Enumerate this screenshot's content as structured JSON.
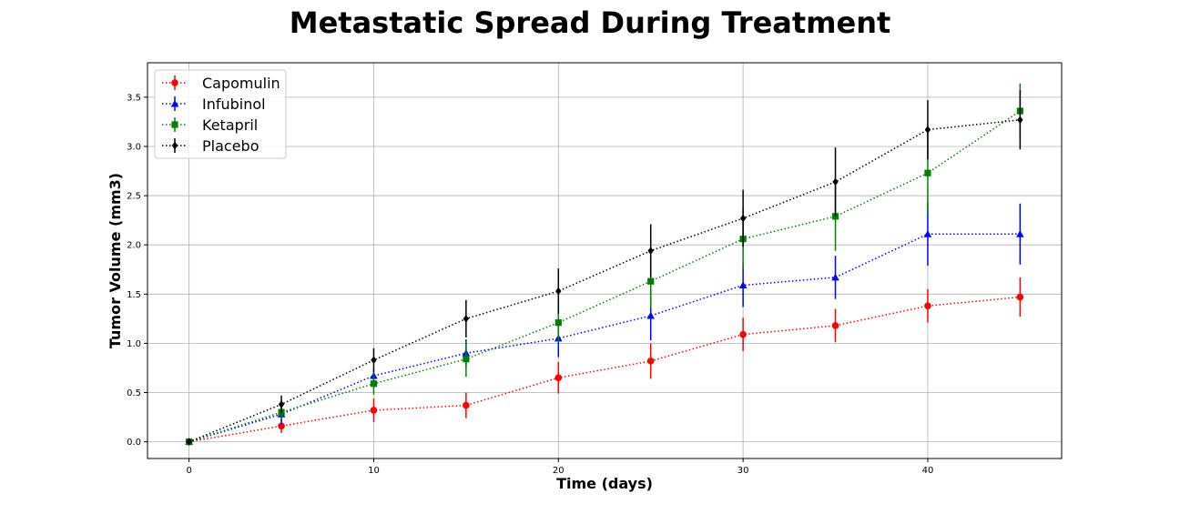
{
  "chart_data": {
    "type": "line",
    "title": "Metastatic Spread During Treatment",
    "xlabel": "Time (days)",
    "ylabel": "Tumor Volume (mm3)",
    "xlim": [
      -2.25,
      47.25
    ],
    "ylim": [
      -0.17,
      3.85
    ],
    "xticks": [
      0,
      10,
      20,
      30,
      40
    ],
    "xtick_labels": [
      "0",
      "10",
      "20",
      "30",
      "40"
    ],
    "yticks": [
      0.0,
      0.5,
      1.0,
      1.5,
      2.0,
      2.5,
      3.0,
      3.5
    ],
    "ytick_labels": [
      "0.0",
      "0.5",
      "1.0",
      "1.5",
      "2.0",
      "2.5",
      "3.0",
      "3.5"
    ],
    "grid": true,
    "legend_position": "top-left",
    "x": [
      0,
      5,
      10,
      15,
      20,
      25,
      30,
      35,
      40,
      45
    ],
    "series": [
      {
        "name": "Capomulin",
        "color": "#ff0000",
        "marker": "circle",
        "values": [
          0.0,
          0.16,
          0.32,
          0.37,
          0.65,
          0.82,
          1.09,
          1.18,
          1.38,
          1.47
        ],
        "errors": [
          0.0,
          0.07,
          0.12,
          0.13,
          0.16,
          0.18,
          0.17,
          0.17,
          0.17,
          0.2
        ]
      },
      {
        "name": "Infubinol",
        "color": "#0000ff",
        "marker": "triangle",
        "values": [
          0.0,
          0.28,
          0.67,
          0.9,
          1.05,
          1.28,
          1.59,
          1.67,
          2.11,
          2.11
        ],
        "errors": [
          0.0,
          0.1,
          0.07,
          0.14,
          0.19,
          0.25,
          0.22,
          0.22,
          0.32,
          0.31
        ]
      },
      {
        "name": "Ketapril",
        "color": "#008000",
        "marker": "square",
        "values": [
          0.0,
          0.3,
          0.59,
          0.84,
          1.21,
          1.63,
          2.06,
          2.29,
          2.73,
          3.36
        ],
        "errors": [
          0.0,
          0.07,
          0.11,
          0.18,
          0.2,
          0.27,
          0.31,
          0.35,
          0.41,
          0.28
        ]
      },
      {
        "name": "Placebo",
        "color": "#000000",
        "marker": "diamond",
        "values": [
          0.0,
          0.38,
          0.83,
          1.25,
          1.53,
          1.94,
          2.27,
          2.64,
          3.17,
          3.27
        ],
        "errors": [
          0.0,
          0.09,
          0.12,
          0.19,
          0.23,
          0.27,
          0.29,
          0.35,
          0.3,
          0.3
        ]
      }
    ]
  }
}
